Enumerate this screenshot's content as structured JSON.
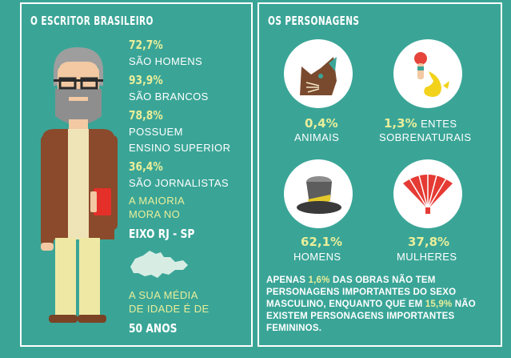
{
  "left_panel": {
    "title": "O ESCRITOR BRASILEIRO",
    "stats": [
      {
        "value": "72,7%",
        "label": "SÃO HOMENS"
      },
      {
        "value": "93,9%",
        "label": "SÃO BRANCOS"
      },
      {
        "value": "78,8%",
        "label_lines": [
          "POSSUEM",
          "ENSINO SUPERIOR"
        ]
      },
      {
        "value": "36,4%",
        "label": "SÃO JORNALISTAS"
      }
    ],
    "region": {
      "lines": [
        "A MAIORIA",
        "MORA NO"
      ],
      "highlight": "EIXO RJ - SP"
    },
    "age": {
      "lines": [
        "A SUA MÉDIA",
        "DE IDADE É DE"
      ],
      "highlight": "50 ANOS"
    }
  },
  "right_panel": {
    "title": "OS PERSONAGENS",
    "characters": [
      {
        "value": "0,4%",
        "label": "ANIMAIS",
        "icon": "cat-icon"
      },
      {
        "value": "1,3%",
        "label_first": "ENTES",
        "label_second": "SOBRENATURAIS",
        "icon": "mermaid-icon"
      },
      {
        "value": "62,1%",
        "label": "HOMENS",
        "icon": "top-hat-icon"
      },
      {
        "value": "37,8%",
        "label": "MULHERES",
        "icon": "hand-fan-icon"
      }
    ],
    "note": {
      "p1": "APENAS ",
      "h1": "1,6%",
      "p2": " DAS OBRAS NÃO TEM PERSONAGENS IMPORTANTES DO SEXO MASCULINO, ENQUANTO QUE EM ",
      "h2": "15,9%",
      "p3": " NÃO EXISTEM PERSONAGENS IMPORTANTES FEMININOS."
    }
  },
  "colors": {
    "background": "#3aa597",
    "highlight": "#e9ee9a",
    "text": "#ffffff"
  }
}
